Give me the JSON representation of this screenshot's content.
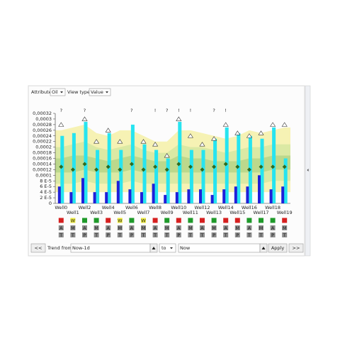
{
  "toolbar": {
    "attribute_label": "Attribute",
    "attribute_value": "Oil",
    "view_type_label": "View type:",
    "view_type_value": "Value"
  },
  "chart_data": {
    "type": "bar",
    "categories": [
      "Well0",
      "Well1",
      "Well2",
      "Well3",
      "Well4",
      "Well5",
      "Well6",
      "Well7",
      "Well8",
      "Well9",
      "Well10",
      "Well11",
      "Well12",
      "Well13",
      "Well14",
      "Well15",
      "Well16",
      "Well17",
      "Well18",
      "Well19"
    ],
    "ylim": [
      0,
      0.00032
    ],
    "yticks": [
      0,
      {
        "value": 2e-05,
        "label": "2 E-5"
      },
      {
        "value": 4e-05,
        "label": "4 E-5"
      },
      {
        "value": 6e-05,
        "label": "6 E-5"
      },
      {
        "value": 8e-05,
        "label": "8 E-5"
      },
      {
        "value": 0.0001,
        "label": "0,0001"
      },
      {
        "value": 0.00012,
        "label": "0,00012"
      },
      {
        "value": 0.00014,
        "label": "0,00014"
      },
      {
        "value": 0.00016,
        "label": "0,00016"
      },
      {
        "value": 0.00018,
        "label": "0,00018"
      },
      {
        "value": 0.0002,
        "label": "0,0002"
      },
      {
        "value": 0.00022,
        "label": "0,00022"
      },
      {
        "value": 0.00024,
        "label": "0,00024"
      },
      {
        "value": 0.00026,
        "label": "0,00026"
      },
      {
        "value": 0.00028,
        "label": "0,00028"
      },
      {
        "value": 0.0003,
        "label": "0,0003"
      },
      {
        "value": 0.00032,
        "label": "0,00032"
      }
    ],
    "bands": [
      {
        "color": "#f6f2b4",
        "high": [
          0.00026,
          0.00027,
          0.00028,
          0.00025,
          0.00024,
          0.00026,
          0.00026,
          0.00024,
          0.00022,
          0.00022,
          0.00026,
          0.00026,
          0.00025,
          0.00024,
          0.00023,
          0.00024,
          0.00026,
          0.00025,
          0.00026,
          0.00027
        ],
        "low": [
          4e-05,
          4e-05,
          4e-05,
          4e-05,
          4e-05,
          4e-05,
          4e-05,
          4e-05,
          4e-05,
          4e-05,
          4e-05,
          4e-05,
          4e-05,
          4e-05,
          4e-05,
          4e-05,
          4e-05,
          4e-05,
          4e-05,
          4e-05
        ]
      },
      {
        "color": "#dbe9a4",
        "high": [
          0.0002,
          0.00021,
          0.00022,
          0.0002,
          0.00019,
          0.0002,
          0.00021,
          0.00019,
          0.00018,
          0.00018,
          0.00021,
          0.0002,
          0.0002,
          0.00019,
          0.00018,
          0.00019,
          0.0002,
          0.0002,
          0.00021,
          0.00021
        ],
        "low": [
          7e-05,
          7e-05,
          8e-05,
          7e-05,
          7e-05,
          7e-05,
          8e-05,
          7e-05,
          7e-05,
          7e-05,
          7e-05,
          7e-05,
          7e-05,
          7e-05,
          7e-05,
          7e-05,
          7e-05,
          7e-05,
          8e-05,
          8e-05
        ]
      },
      {
        "color": "#bcd88c",
        "high": [
          0.00016,
          0.00017,
          0.00017,
          0.00016,
          0.00015,
          0.00016,
          0.00017,
          0.00016,
          0.00015,
          0.00015,
          0.00017,
          0.00016,
          0.00016,
          0.00015,
          0.00015,
          0.00015,
          0.00016,
          0.00016,
          0.00017,
          0.00017
        ],
        "low": [
          0.00011,
          0.00011,
          0.00012,
          0.00011,
          0.00011,
          0.00011,
          0.00012,
          0.00011,
          0.00011,
          0.00011,
          0.00011,
          0.00011,
          0.00011,
          0.00011,
          0.00011,
          0.00011,
          0.00011,
          0.00011,
          0.00012,
          0.00012
        ]
      }
    ],
    "series": [
      {
        "color": "#27e4f0",
        "values": [
          0.00024,
          0.00025,
          0.00029,
          0.00019,
          0.00025,
          0.00019,
          0.00028,
          0.00021,
          0.00019,
          0.00016,
          0.00029,
          0.00019,
          0.00019,
          0.00023,
          0.00027,
          0.00025,
          0.00024,
          0.00023,
          0.00027,
          0.00016
        ]
      },
      {
        "color": "#2020d8",
        "values": [
          6e-05,
          4e-05,
          9e-05,
          4e-05,
          4e-05,
          8e-05,
          5e-05,
          4e-05,
          7e-05,
          3e-05,
          4e-05,
          5e-05,
          5e-05,
          3e-05,
          5e-05,
          6e-05,
          6e-05,
          0.0001,
          5e-05,
          6e-05
        ]
      }
    ],
    "targets": {
      "color": "#ffffff",
      "values": [
        0.00028,
        null,
        0.0003,
        0.00022,
        0.00026,
        0.00022,
        null,
        0.00022,
        0.00021,
        0.00017,
        0.0003,
        0.00024,
        0.00021,
        0.00023,
        0.00028,
        0.00025,
        0.00024,
        0.00025,
        0.00028,
        0.00028
      ]
    },
    "diamonds": {
      "color": "#2f6b1f",
      "values": [
        0.00013,
        0.00012,
        0.00014,
        0.00012,
        0.00013,
        0.00012,
        0.00014,
        0.00012,
        0.00013,
        0.00012,
        0.00014,
        0.00013,
        0.00012,
        0.00013,
        0.00014,
        0.00013,
        0.00012,
        0.00013,
        0.00013,
        0.00013
      ]
    },
    "annotations": [
      "?",
      null,
      "?",
      null,
      null,
      null,
      "?",
      null,
      "!",
      "?",
      "!",
      "!",
      null,
      "?",
      "!",
      null,
      null,
      null,
      null,
      null
    ]
  },
  "status": {
    "row1": [
      {
        "color": "#d62020"
      },
      {
        "color": "#f0ee40",
        "label": "W"
      },
      {
        "color": "#1f9a2a"
      },
      {
        "color": "#1f9a2a"
      },
      {
        "color": "#d62020"
      },
      {
        "color": "#f0ee40",
        "label": "W"
      },
      {
        "color": "#1f9a2a"
      },
      {
        "color": "#f0ee40",
        "label": "W"
      },
      {
        "color": "#d62020"
      },
      {
        "color": "#1f9a2a"
      },
      {
        "color": "#d62020"
      },
      {
        "color": "#1f9a2a"
      },
      {
        "color": "#d62020"
      },
      {
        "color": "#1f9a2a"
      },
      {
        "color": "#d62020"
      },
      {
        "color": "#d62020"
      },
      {
        "color": "#1f9a2a"
      },
      {
        "color": "#1f9a2a"
      },
      {
        "color": "#1f9a2a"
      },
      {
        "color": "#d62020"
      }
    ],
    "row2": [
      "A",
      "M",
      "A",
      "M",
      "A",
      "M",
      "A",
      "M",
      "A",
      "M",
      "A",
      "M",
      "A",
      "M",
      "A",
      "M",
      "A",
      "M",
      "A",
      "M"
    ],
    "row3": [
      "T",
      "T",
      "P",
      "T",
      "P",
      "T",
      "P",
      "T",
      "T",
      "T",
      "P",
      "T",
      "T",
      "P",
      "T",
      "P",
      "T",
      "T",
      "P",
      "T"
    ]
  },
  "footer": {
    "prev": "<<",
    "trend_from": "Trend from",
    "from_value": "Now-1d",
    "to": "to",
    "to_value": "Now",
    "apply": "Apply",
    "next": ">>"
  }
}
